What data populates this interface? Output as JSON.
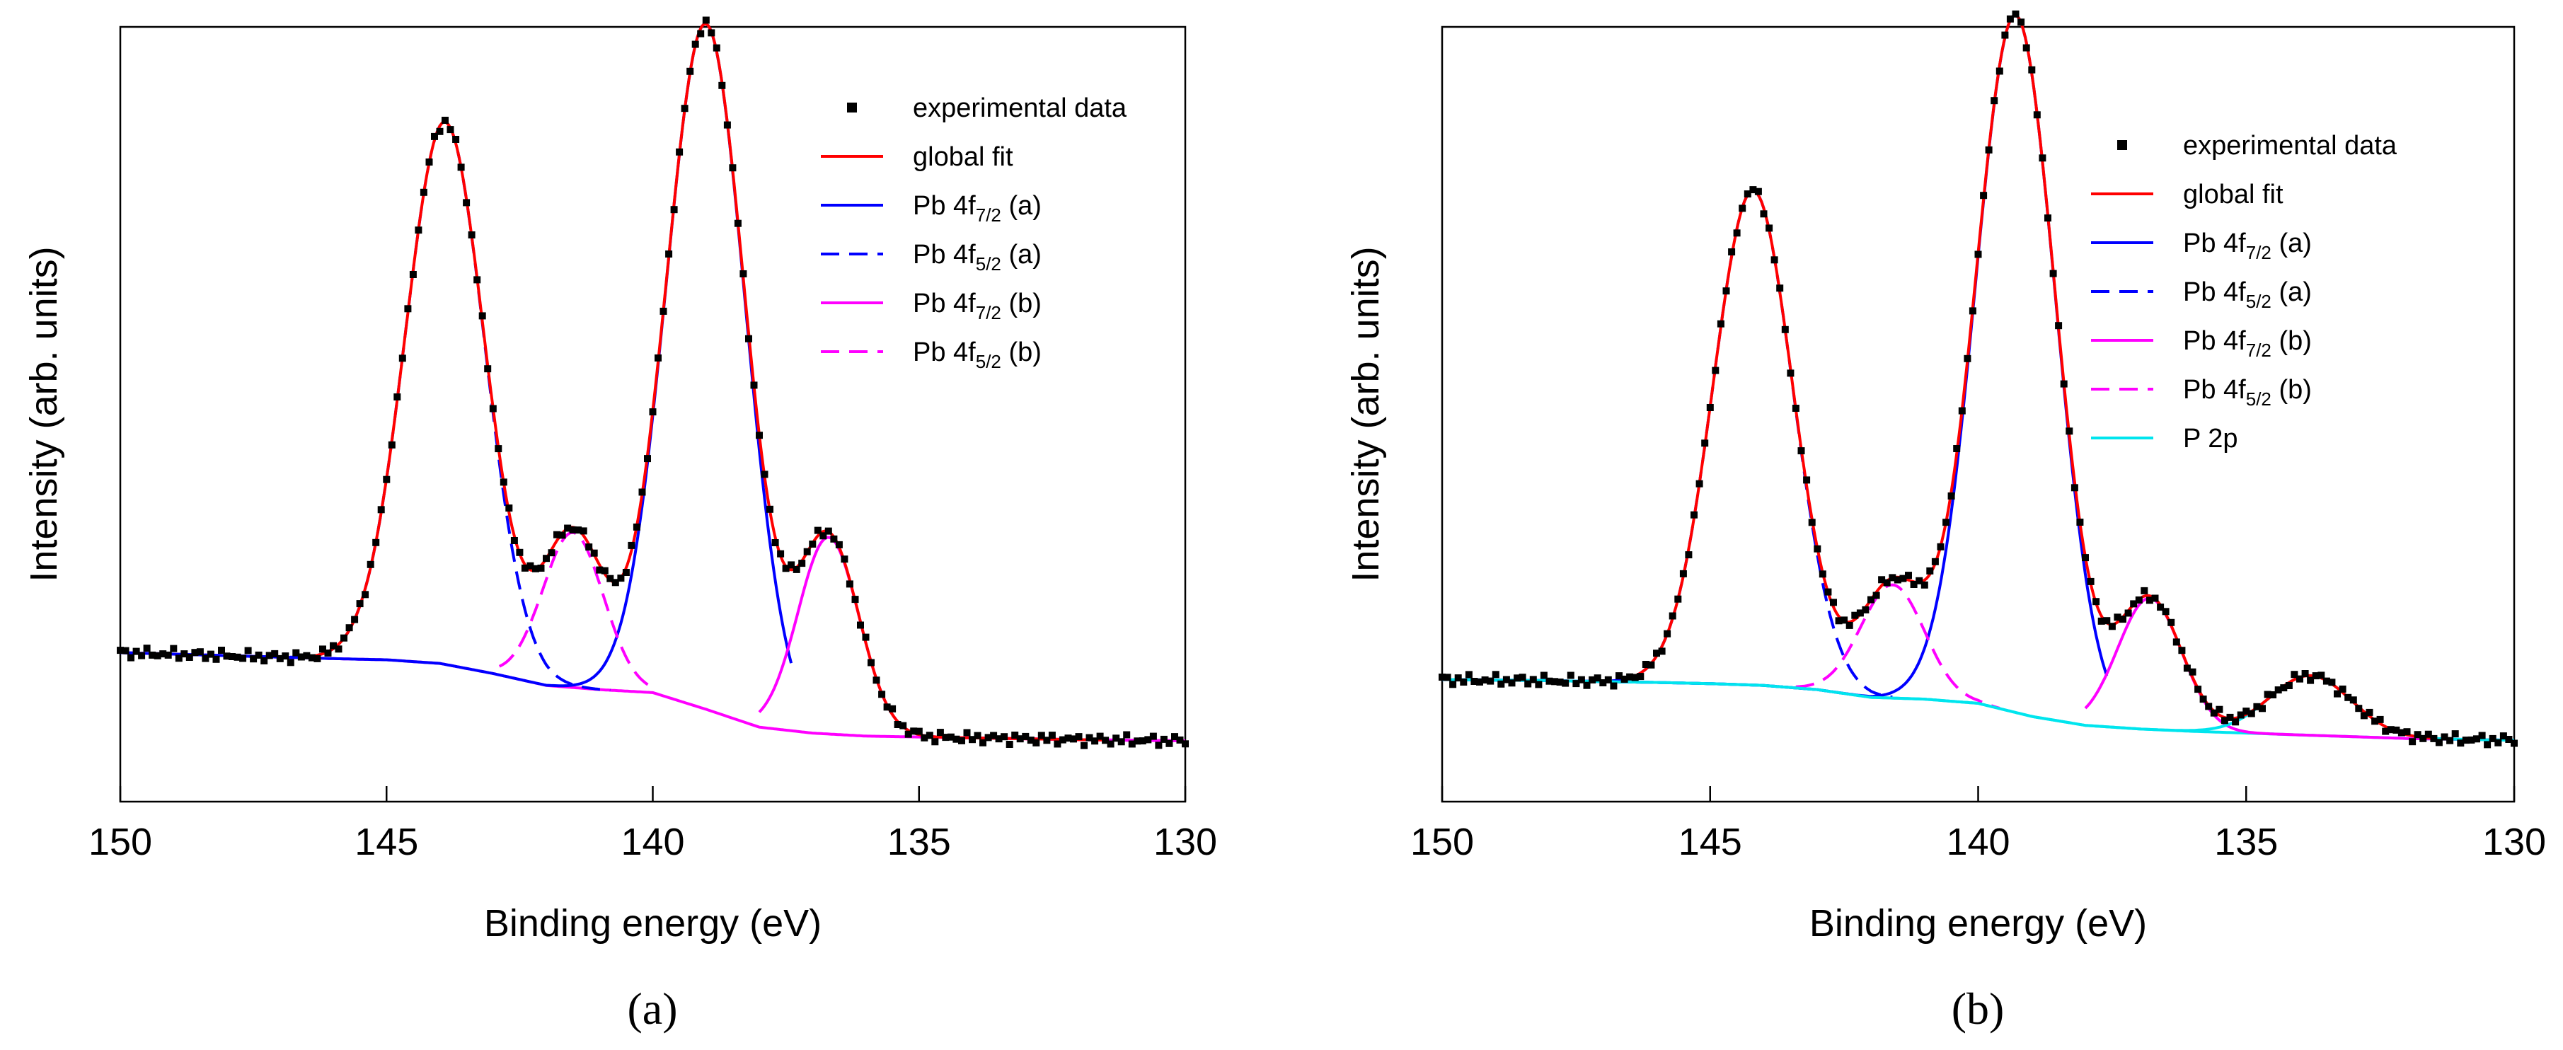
{
  "chart_data": [
    {
      "type": "line",
      "panel": "a",
      "caption": "(a)",
      "xlabel": "Binding energy (eV)",
      "ylabel": "Intensity (arb. units)",
      "xlim": [
        150,
        130
      ],
      "xticks": [
        150,
        145,
        140,
        135,
        130
      ],
      "ylim": [
        -10,
        120
      ],
      "grid": false,
      "legend_position": "top-right",
      "legend": [
        {
          "key": "experimental data",
          "label": "experimental data",
          "label_main": "experimental data",
          "label_sub": "",
          "label_tail": "",
          "color": "#000000",
          "style": "marker"
        },
        {
          "key": "global fit",
          "label": "global fit",
          "label_main": "global fit",
          "label_sub": "",
          "label_tail": "",
          "color": "#ff0000",
          "style": "solid"
        },
        {
          "key": "Pb 4f7/2 (a)",
          "label": "Pb 4f7/2 (a)",
          "label_main": "Pb 4f",
          "label_sub": "7/2",
          "label_tail": " (a)",
          "color": "#0000ff",
          "style": "solid"
        },
        {
          "key": "Pb 4f5/2 (a)",
          "label": "Pb 4f5/2 (a)",
          "label_main": "Pb 4f",
          "label_sub": "5/2",
          "label_tail": " (a)",
          "color": "#0000ff",
          "style": "dashed"
        },
        {
          "key": "Pb 4f7/2 (b)",
          "label": "Pb 4f7/2 (b)",
          "label_main": "Pb 4f",
          "label_sub": "7/2",
          "label_tail": " (b)",
          "color": "#ff00ff",
          "style": "solid"
        },
        {
          "key": "Pb 4f5/2 (b)",
          "label": "Pb 4f5/2 (b)",
          "label_main": "Pb 4f",
          "label_sub": "5/2",
          "label_tail": " (b)",
          "color": "#ff00ff",
          "style": "dashed"
        }
      ],
      "background": {
        "color": "#ff00ff",
        "x": [
          150,
          148,
          146,
          145,
          144,
          143,
          142,
          141,
          140,
          139,
          138,
          137,
          136,
          134,
          132,
          130
        ],
        "y": [
          15,
          14.5,
          14,
          13.8,
          13.2,
          11.5,
          9.5,
          8.8,
          8.3,
          5.5,
          2.5,
          1.5,
          1.0,
          0.7,
          0.4,
          0.2
        ]
      },
      "peaks": [
        {
          "series": "Pb 4f7/2 (a)",
          "center": 139.0,
          "height": 115,
          "fwhm": 1.75,
          "color": "#0000ff",
          "style": "solid",
          "domain": [
            137.4,
            150
          ]
        },
        {
          "series": "Pb 4f5/2 (a)",
          "center": 143.9,
          "height": 91,
          "fwhm": 1.75,
          "color": "#0000ff",
          "style": "dashed",
          "domain": [
            140.8,
            150
          ]
        },
        {
          "series": "Pb 4f7/2 (b)",
          "center": 136.7,
          "height": 33,
          "fwhm": 1.35,
          "color": "#ff00ff",
          "style": "solid",
          "domain": [
            130,
            138.0
          ]
        },
        {
          "series": "Pb 4f5/2 (b)",
          "center": 141.5,
          "height": 26,
          "fwhm": 1.35,
          "color": "#ff00ff",
          "style": "dashed",
          "domain": [
            140.0,
            142.9
          ]
        }
      ]
    },
    {
      "type": "line",
      "panel": "b",
      "caption": "(b)",
      "xlabel": "Binding energy (eV)",
      "ylabel": "Intensity (arb. units)",
      "xlim": [
        150,
        130
      ],
      "xticks": [
        150,
        145,
        140,
        135,
        130
      ],
      "ylim": [
        -10,
        120
      ],
      "grid": false,
      "legend_position": "top-right",
      "legend": [
        {
          "key": "experimental data",
          "label": "experimental data",
          "label_main": "experimental data",
          "label_sub": "",
          "label_tail": "",
          "color": "#000000",
          "style": "marker"
        },
        {
          "key": "global fit",
          "label": "global fit",
          "label_main": "global fit",
          "label_sub": "",
          "label_tail": "",
          "color": "#ff0000",
          "style": "solid"
        },
        {
          "key": "Pb 4f7/2 (a)",
          "label": "Pb 4f7/2 (a)",
          "label_main": "Pb 4f",
          "label_sub": "7/2",
          "label_tail": " (a)",
          "color": "#0000ff",
          "style": "solid"
        },
        {
          "key": "Pb 4f5/2 (a)",
          "label": "Pb 4f5/2 (a)",
          "label_main": "Pb 4f",
          "label_sub": "5/2",
          "label_tail": " (a)",
          "color": "#0000ff",
          "style": "dashed"
        },
        {
          "key": "Pb 4f7/2 (b)",
          "label": "Pb 4f7/2 (b)",
          "label_main": "Pb 4f",
          "label_sub": "7/2",
          "label_tail": " (b)",
          "color": "#ff00ff",
          "style": "solid"
        },
        {
          "key": "Pb 4f5/2 (b)",
          "label": "Pb 4f5/2 (b)",
          "label_main": "Pb 4f",
          "label_sub": "5/2",
          "label_tail": " (b)",
          "color": "#ff00ff",
          "style": "dashed"
        },
        {
          "key": "P 2p",
          "label": "P 2p",
          "label_main": "P 2p",
          "label_sub": "",
          "label_tail": "",
          "color": "#00e5ee",
          "style": "solid"
        }
      ],
      "background": {
        "color": "#00e5ee",
        "x": [
          150,
          148,
          146,
          145,
          144,
          143,
          142,
          141,
          140,
          139,
          138,
          137,
          136,
          134,
          132,
          130
        ],
        "y": [
          10.5,
          10.3,
          10.0,
          9.8,
          9.5,
          8.8,
          7.5,
          7.2,
          6.5,
          4.3,
          2.8,
          2.2,
          1.8,
          1.2,
          0.6,
          0.3
        ]
      },
      "peaks": [
        {
          "series": "Pb 4f7/2 (a)",
          "center": 139.3,
          "height": 117,
          "fwhm": 1.75,
          "color": "#0000ff",
          "style": "solid",
          "domain": [
            137.6,
            150
          ]
        },
        {
          "series": "Pb 4f5/2 (a)",
          "center": 144.2,
          "height": 83,
          "fwhm": 1.75,
          "color": "#0000ff",
          "style": "dashed",
          "domain": [
            141.6,
            150
          ]
        },
        {
          "series": "Pb 4f7/2 (b)",
          "center": 136.8,
          "height": 22,
          "fwhm": 1.4,
          "color": "#ff00ff",
          "style": "solid",
          "domain": [
            130,
            138.0
          ]
        },
        {
          "series": "Pb 4f5/2 (b)",
          "center": 141.6,
          "height": 19,
          "fwhm": 1.4,
          "color": "#ff00ff",
          "style": "dashed",
          "domain": [
            139.6,
            143.4
          ]
        },
        {
          "series": "P 2p",
          "center": 133.8,
          "height": 10,
          "fwhm": 1.8,
          "color": "#00e5ee",
          "style": "solid",
          "domain": [
            130,
            150
          ]
        }
      ]
    }
  ]
}
